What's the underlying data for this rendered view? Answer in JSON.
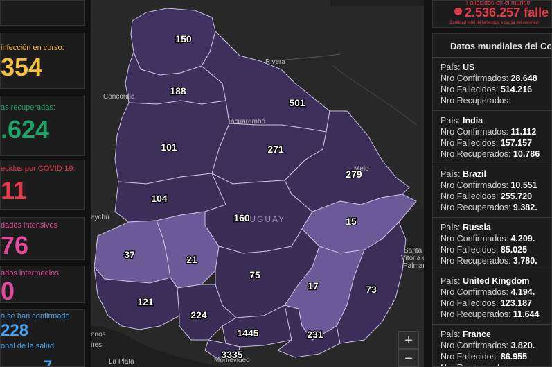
{
  "left_panel": {
    "infection": {
      "label": "infección en curso:",
      "value": "354",
      "color": "#f5c142"
    },
    "recovered": {
      "label": "as recuperadas:",
      "value": ".624",
      "color": "#1fa36a"
    },
    "deceased": {
      "label": "ecidas por COVID-19:",
      "value": "11",
      "color": "#e8394a"
    },
    "intensive": {
      "label": "dados intensivos",
      "value": "76",
      "color": "#e24b9b"
    },
    "intermediate": {
      "label": "ados intermedios",
      "value": "0",
      "color": "#e24b9b"
    },
    "confirmed": {
      "label": "o se han confirmado",
      "value": "228",
      "label2": "onal de la salud",
      "value2": "7",
      "color": "#4aa3f0"
    }
  },
  "header_right": {
    "subtitle": "Fallecidos en el mundo",
    "count": "2.536.257 falle",
    "note": "Cantidad total de fallecidos a causa del coronavi",
    "color": "#e8394a"
  },
  "map": {
    "country_label": "URUGUAY",
    "cities": {
      "rivera": "Rivera",
      "concordia": "Concordia",
      "tacuarembo": "Tacuarembó",
      "melo": "Melo",
      "paysandu": "aychú",
      "santa_vitoria": "Santa\nVitória do\nPalmar",
      "buenos_aires": "enos\nires",
      "la_plata": "La Plata",
      "montevideo": "Montevideo"
    },
    "departments": [
      {
        "id": "artigas",
        "value": "150"
      },
      {
        "id": "salto",
        "value": "188"
      },
      {
        "id": "rivera",
        "value": "501"
      },
      {
        "id": "paysandu",
        "value": "101"
      },
      {
        "id": "tacuarembo",
        "value": "271"
      },
      {
        "id": "cerro_largo",
        "value": "279"
      },
      {
        "id": "rio_negro",
        "value": "104"
      },
      {
        "id": "durazno",
        "value": "160"
      },
      {
        "id": "treinta_y_tres",
        "value": "15"
      },
      {
        "id": "soriano",
        "value": "37"
      },
      {
        "id": "flores",
        "value": "21"
      },
      {
        "id": "florida",
        "value": "75"
      },
      {
        "id": "lavalleja",
        "value": "17"
      },
      {
        "id": "rocha",
        "value": "73"
      },
      {
        "id": "colonia",
        "value": "121"
      },
      {
        "id": "san_jose",
        "value": "224"
      },
      {
        "id": "canelones",
        "value": "1445"
      },
      {
        "id": "maldonado",
        "value": "231"
      },
      {
        "id": "montevideo",
        "value": "3335"
      }
    ],
    "zoom_in": "+",
    "zoom_out": "−"
  },
  "world_panel": {
    "title": "Datos mundiales del Co",
    "labels": {
      "pais": "País: ",
      "confirmed": "Nro Confirmados: ",
      "deceased": "Nro Fallecidos: ",
      "recovered": "Nro Recuperados: "
    },
    "countries": [
      {
        "name": "US",
        "confirmed": "28.648",
        "deceased": "514.216",
        "recovered": ""
      },
      {
        "name": "India",
        "confirmed": "11.112",
        "deceased": "157.157",
        "recovered": "10.786"
      },
      {
        "name": "Brazil",
        "confirmed": "10.551",
        "deceased": "255.720",
        "recovered": "9.382."
      },
      {
        "name": "Russia",
        "confirmed": "4.209.",
        "deceased": "85.025",
        "recovered": "3.780."
      },
      {
        "name": "United Kingdom",
        "confirmed": "4.194.",
        "deceased": "123.187",
        "recovered": "11.644"
      },
      {
        "name": "France",
        "confirmed": "3.820.",
        "deceased": "86.955",
        "recovered": ""
      }
    ]
  }
}
